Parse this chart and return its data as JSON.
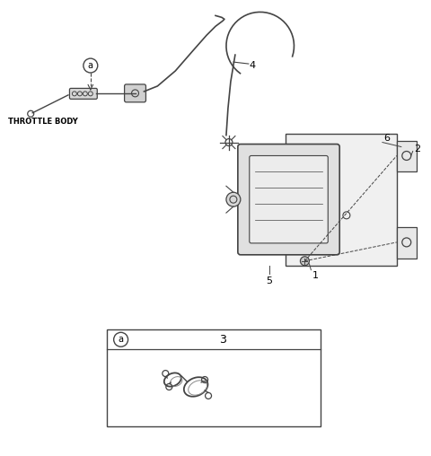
{
  "background_color": "#ffffff",
  "line_color": "#444444",
  "text_color": "#000000",
  "fig_width": 4.8,
  "fig_height": 5.08,
  "dpi": 100,
  "labels": {
    "throttle_body": "THROTTLE BODY",
    "a": "a",
    "4": "4",
    "1": "1",
    "2": "2",
    "5": "5",
    "6": "6",
    "3": "3"
  }
}
